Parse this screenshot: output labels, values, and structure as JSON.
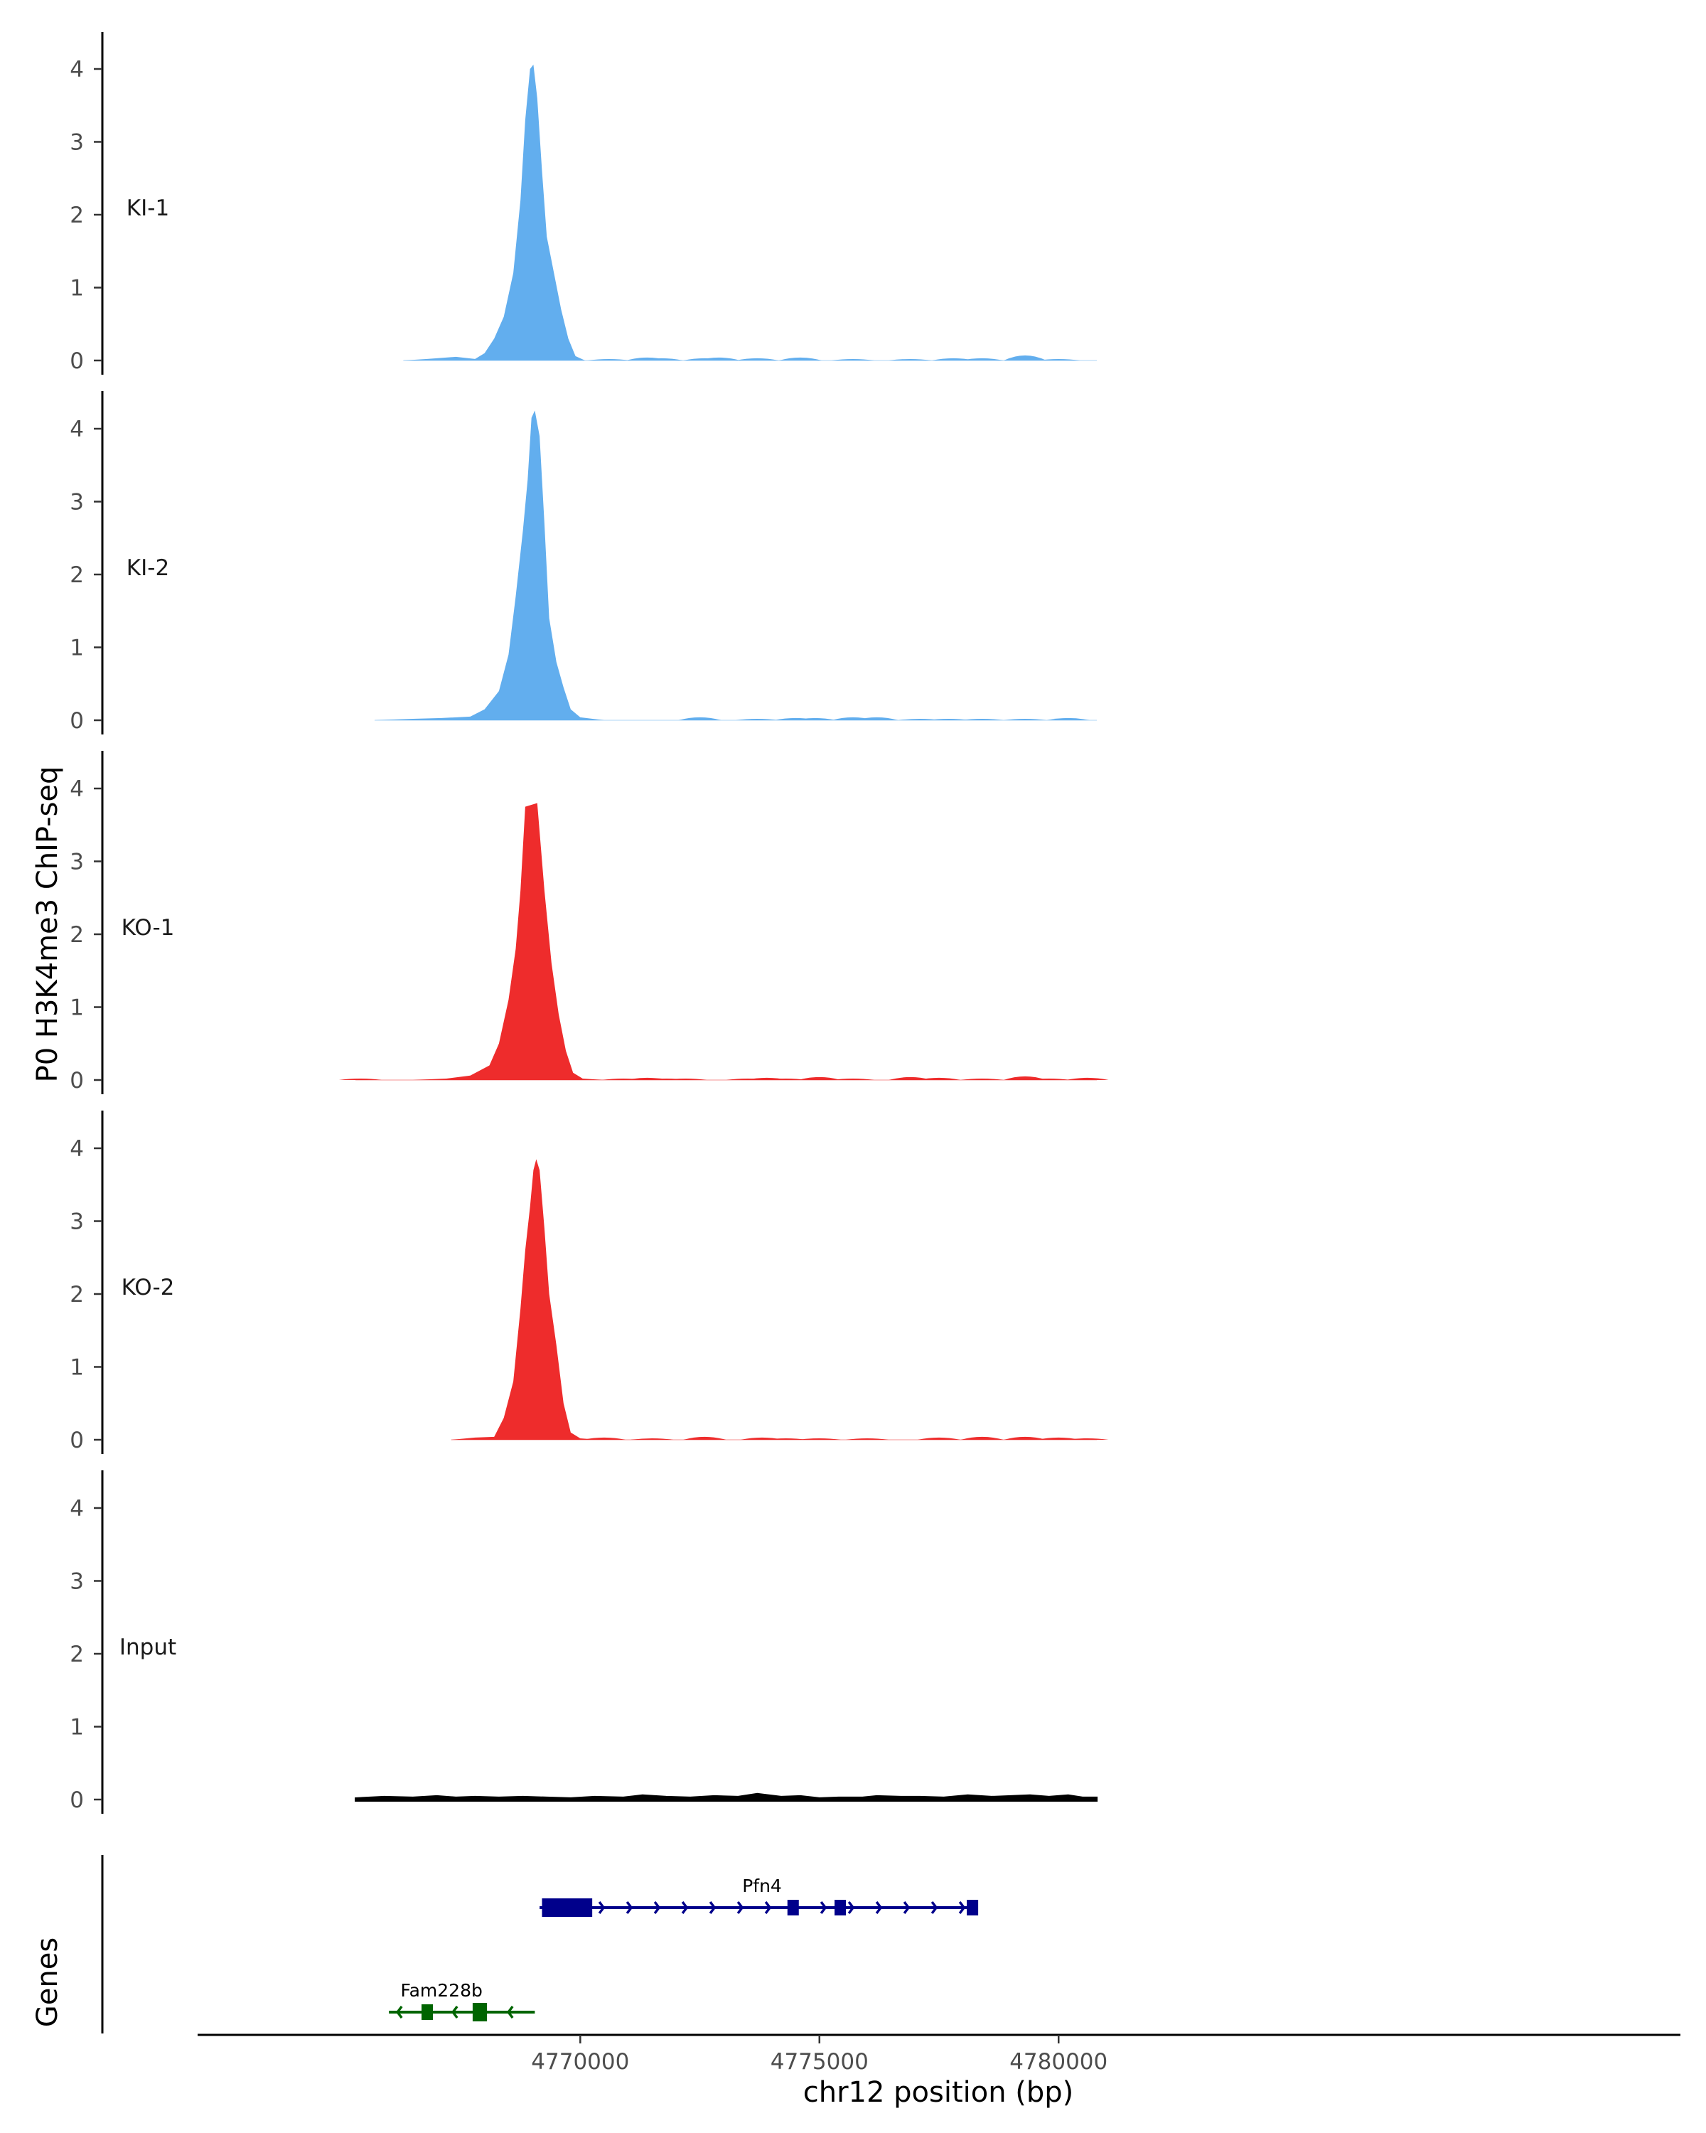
{
  "chart_data": {
    "type": "area",
    "ylabel": "P0 H3K4me3 ChIP-seq",
    "xlabel": "chr12 position (bp)",
    "xlim": [
      4762000,
      4793000
    ],
    "x_ticks": [
      4770000,
      4775000,
      4780000
    ],
    "x_tick_labels": [
      "4770000",
      "4775000",
      "4780000"
    ],
    "ylim": [
      0,
      4.45
    ],
    "y_ticks": [
      0,
      1,
      2,
      3,
      4
    ],
    "y_tick_labels": [
      "0",
      "1",
      "2",
      "3",
      "4"
    ],
    "tracks": [
      {
        "label": "KI-1",
        "color": "#62aeee",
        "data_range": [
          4766300,
          4780800
        ],
        "peak": [
          [
            4766300,
            0
          ],
          [
            4766800,
            0.02
          ],
          [
            4767400,
            0.05
          ],
          [
            4767800,
            0.02
          ],
          [
            4768000,
            0.1
          ],
          [
            4768200,
            0.3
          ],
          [
            4768400,
            0.6
          ],
          [
            4768600,
            1.2
          ],
          [
            4768750,
            2.2
          ],
          [
            4768850,
            3.3
          ],
          [
            4768950,
            4.0
          ],
          [
            4769020,
            4.06
          ],
          [
            4769100,
            3.6
          ],
          [
            4769200,
            2.6
          ],
          [
            4769300,
            1.7
          ],
          [
            4769450,
            1.2
          ],
          [
            4769600,
            0.7
          ],
          [
            4769750,
            0.3
          ],
          [
            4769900,
            0.06
          ],
          [
            4770100,
            0
          ]
        ],
        "noise": [
          [
            4770600,
            0.02
          ],
          [
            4771400,
            0.04
          ],
          [
            4771700,
            0.03
          ],
          [
            4772600,
            0.03
          ],
          [
            4772900,
            0.04
          ],
          [
            4773700,
            0.03
          ],
          [
            4774600,
            0.04
          ],
          [
            4775700,
            0.02
          ],
          [
            4776900,
            0.02
          ],
          [
            4777800,
            0.03
          ],
          [
            4778400,
            0.03
          ],
          [
            4779300,
            0.07
          ],
          [
            4780000,
            0.02
          ]
        ]
      },
      {
        "label": "KI-2",
        "color": "#62aeee",
        "data_range": [
          4765700,
          4780800
        ],
        "peak": [
          [
            4765700,
            0
          ],
          [
            4766500,
            0.02
          ],
          [
            4767100,
            0.03
          ],
          [
            4767700,
            0.05
          ],
          [
            4768000,
            0.15
          ],
          [
            4768300,
            0.4
          ],
          [
            4768500,
            0.9
          ],
          [
            4768650,
            1.7
          ],
          [
            4768800,
            2.6
          ],
          [
            4768900,
            3.3
          ],
          [
            4768980,
            4.15
          ],
          [
            4769050,
            4.25
          ],
          [
            4769150,
            3.9
          ],
          [
            4769250,
            2.7
          ],
          [
            4769350,
            1.4
          ],
          [
            4769500,
            0.8
          ],
          [
            4769650,
            0.45
          ],
          [
            4769800,
            0.15
          ],
          [
            4770000,
            0.04
          ],
          [
            4770500,
            0
          ]
        ],
        "noise": [
          [
            4772500,
            0.04
          ],
          [
            4773700,
            0.02
          ],
          [
            4774500,
            0.03
          ],
          [
            4774900,
            0.03
          ],
          [
            4775700,
            0.04
          ],
          [
            4776200,
            0.04
          ],
          [
            4777100,
            0.02
          ],
          [
            4777700,
            0.02
          ],
          [
            4778400,
            0.02
          ],
          [
            4779300,
            0.02
          ],
          [
            4780200,
            0.03
          ]
        ]
      },
      {
        "label": "KO-1",
        "color": "#ee2c2c",
        "data_range": [
          4765300,
          4780800
        ],
        "peak": [
          [
            4766500,
            0
          ],
          [
            4767200,
            0.02
          ],
          [
            4767700,
            0.06
          ],
          [
            4768100,
            0.2
          ],
          [
            4768300,
            0.5
          ],
          [
            4768500,
            1.1
          ],
          [
            4768650,
            1.8
          ],
          [
            4768750,
            2.6
          ],
          [
            4768850,
            3.75
          ],
          [
            4769100,
            3.8
          ],
          [
            4769250,
            2.6
          ],
          [
            4769400,
            1.6
          ],
          [
            4769550,
            0.9
          ],
          [
            4769700,
            0.4
          ],
          [
            4769850,
            0.1
          ],
          [
            4770050,
            0.02
          ],
          [
            4770500,
            0
          ]
        ],
        "noise": [
          [
            4765400,
            0.02
          ],
          [
            4770900,
            0.02
          ],
          [
            4771400,
            0.03
          ],
          [
            4771800,
            0.02
          ],
          [
            4772200,
            0.02
          ],
          [
            4773500,
            0.02
          ],
          [
            4773900,
            0.03
          ],
          [
            4774300,
            0.02
          ],
          [
            4775000,
            0.04
          ],
          [
            4775700,
            0.02
          ],
          [
            4776900,
            0.04
          ],
          [
            4777500,
            0.03
          ],
          [
            4778400,
            0.02
          ],
          [
            4779300,
            0.05
          ],
          [
            4779800,
            0.02
          ],
          [
            4780600,
            0.03
          ]
        ]
      },
      {
        "label": "KO-2",
        "color": "#ee2c2c",
        "data_range": [
          4767300,
          4780800
        ],
        "peak": [
          [
            4767300,
            0
          ],
          [
            4767800,
            0.03
          ],
          [
            4768200,
            0.04
          ],
          [
            4768400,
            0.3
          ],
          [
            4768600,
            0.8
          ],
          [
            4768750,
            1.8
          ],
          [
            4768850,
            2.6
          ],
          [
            4768950,
            3.2
          ],
          [
            4769020,
            3.7
          ],
          [
            4769080,
            3.85
          ],
          [
            4769150,
            3.7
          ],
          [
            4769250,
            2.9
          ],
          [
            4769350,
            2.0
          ],
          [
            4769500,
            1.3
          ],
          [
            4769650,
            0.5
          ],
          [
            4769800,
            0.1
          ],
          [
            4770000,
            0.02
          ],
          [
            4770400,
            0
          ]
        ],
        "noise": [
          [
            4770500,
            0.03
          ],
          [
            4771500,
            0.02
          ],
          [
            4772600,
            0.04
          ],
          [
            4773800,
            0.03
          ],
          [
            4774300,
            0.02
          ],
          [
            4775000,
            0.02
          ],
          [
            4776000,
            0.02
          ],
          [
            4777500,
            0.03
          ],
          [
            4778400,
            0.04
          ],
          [
            4779300,
            0.04
          ],
          [
            4780000,
            0.03
          ],
          [
            4780600,
            0.02
          ]
        ]
      },
      {
        "label": "Input",
        "color": "#000000",
        "data_range": [
          4765300,
          4780800
        ],
        "wiggle": [
          [
            4765300,
            0.02
          ],
          [
            4765900,
            0.04
          ],
          [
            4766500,
            0.03
          ],
          [
            4767000,
            0.05
          ],
          [
            4767400,
            0.03
          ],
          [
            4767800,
            0.04
          ],
          [
            4768300,
            0.03
          ],
          [
            4768800,
            0.04
          ],
          [
            4769300,
            0.03
          ],
          [
            4769800,
            0.02
          ],
          [
            4770300,
            0.04
          ],
          [
            4770900,
            0.03
          ],
          [
            4771300,
            0.06
          ],
          [
            4771800,
            0.04
          ],
          [
            4772300,
            0.03
          ],
          [
            4772800,
            0.05
          ],
          [
            4773300,
            0.04
          ],
          [
            4773700,
            0.08
          ],
          [
            4774200,
            0.04
          ],
          [
            4774600,
            0.05
          ],
          [
            4775000,
            0.02
          ],
          [
            4775400,
            0.03
          ],
          [
            4775900,
            0.03
          ],
          [
            4776200,
            0.05
          ],
          [
            4776700,
            0.04
          ],
          [
            4777100,
            0.04
          ],
          [
            4777600,
            0.03
          ],
          [
            4778100,
            0.06
          ],
          [
            4778600,
            0.04
          ],
          [
            4779000,
            0.05
          ],
          [
            4779400,
            0.06
          ],
          [
            4779800,
            0.04
          ],
          [
            4780200,
            0.06
          ],
          [
            4780500,
            0.03
          ],
          [
            4780800,
            0.03
          ]
        ]
      }
    ],
    "genes_track": {
      "title": "Genes",
      "genes": [
        {
          "name": "Pfn4",
          "strand": "+",
          "color": "#00008b",
          "start": 4769150,
          "end": 4778200,
          "exons": [
            [
              4769200,
              4770250
            ],
            [
              4774350,
              4774550
            ],
            [
              4775350,
              4775520
            ],
            [
              4778150,
              4778250
            ]
          ],
          "thick_exons": [
            0
          ],
          "label_at": 4773800
        },
        {
          "name": "Fam228b",
          "strand": "-",
          "color": "#006400",
          "start": 4766000,
          "end": 4769050,
          "exons": [
            [
              4766700,
              4766900
            ],
            [
              4767750,
              4768050
            ]
          ],
          "thick_exons": [
            1
          ],
          "label_at": 4767100
        }
      ]
    }
  }
}
